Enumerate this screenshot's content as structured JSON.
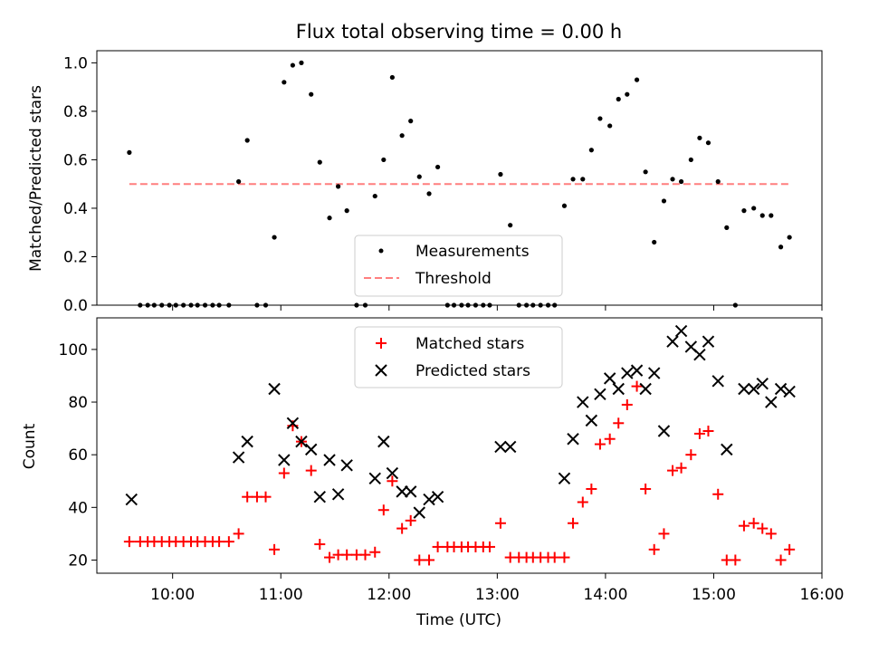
{
  "chart_data": [
    {
      "type": "scatter",
      "title": "Flux total observing time = 0.00 h",
      "xlabel": "",
      "ylabel": "Matched/Predicted stars",
      "xlim": [
        9.3,
        16.0
      ],
      "ylim": [
        0,
        1.05
      ],
      "yticks": [
        0.0,
        0.2,
        0.4,
        0.6,
        0.8,
        1.0
      ],
      "ytick_labels": [
        "0.0",
        "0.2",
        "0.4",
        "0.6",
        "0.8",
        "1.0"
      ],
      "legend_position": "lower-center",
      "series": [
        {
          "name": "Measurements",
          "color": "#000000",
          "marker": "dot",
          "points": [
            [
              9.6,
              0.63
            ],
            [
              9.7,
              0.0
            ],
            [
              9.77,
              0.0
            ],
            [
              9.83,
              0.0
            ],
            [
              9.9,
              0.0
            ],
            [
              9.97,
              0.0
            ],
            [
              10.03,
              0.0
            ],
            [
              10.1,
              0.0
            ],
            [
              10.17,
              0.0
            ],
            [
              10.23,
              0.0
            ],
            [
              10.3,
              0.0
            ],
            [
              10.37,
              0.0
            ],
            [
              10.43,
              0.0
            ],
            [
              10.52,
              0.0
            ],
            [
              10.61,
              0.51
            ],
            [
              10.69,
              0.68
            ],
            [
              10.78,
              0.0
            ],
            [
              10.86,
              0.0
            ],
            [
              10.94,
              0.28
            ],
            [
              11.03,
              0.92
            ],
            [
              11.11,
              0.99
            ],
            [
              11.19,
              1.0
            ],
            [
              11.28,
              0.87
            ],
            [
              11.36,
              0.59
            ],
            [
              11.45,
              0.36
            ],
            [
              11.53,
              0.49
            ],
            [
              11.61,
              0.39
            ],
            [
              11.7,
              0.0
            ],
            [
              11.78,
              0.0
            ],
            [
              11.87,
              0.45
            ],
            [
              11.95,
              0.6
            ],
            [
              12.03,
              0.94
            ],
            [
              12.12,
              0.7
            ],
            [
              12.2,
              0.76
            ],
            [
              12.28,
              0.53
            ],
            [
              12.37,
              0.46
            ],
            [
              12.45,
              0.57
            ],
            [
              12.54,
              0.0
            ],
            [
              12.6,
              0.0
            ],
            [
              12.67,
              0.0
            ],
            [
              12.73,
              0.0
            ],
            [
              12.8,
              0.0
            ],
            [
              12.87,
              0.0
            ],
            [
              12.93,
              0.0
            ],
            [
              13.03,
              0.54
            ],
            [
              13.12,
              0.33
            ],
            [
              13.2,
              0.0
            ],
            [
              13.27,
              0.0
            ],
            [
              13.33,
              0.0
            ],
            [
              13.4,
              0.0
            ],
            [
              13.47,
              0.0
            ],
            [
              13.53,
              0.0
            ],
            [
              13.62,
              0.41
            ],
            [
              13.7,
              0.52
            ],
            [
              13.79,
              0.52
            ],
            [
              13.87,
              0.64
            ],
            [
              13.95,
              0.77
            ],
            [
              14.04,
              0.74
            ],
            [
              14.12,
              0.85
            ],
            [
              14.2,
              0.87
            ],
            [
              14.29,
              0.93
            ],
            [
              14.37,
              0.55
            ],
            [
              14.45,
              0.26
            ],
            [
              14.54,
              0.43
            ],
            [
              14.62,
              0.52
            ],
            [
              14.7,
              0.51
            ],
            [
              14.79,
              0.6
            ],
            [
              14.87,
              0.69
            ],
            [
              14.95,
              0.67
            ],
            [
              15.04,
              0.51
            ],
            [
              15.12,
              0.32
            ],
            [
              15.2,
              0.0
            ],
            [
              15.28,
              0.39
            ],
            [
              15.37,
              0.4
            ],
            [
              15.45,
              0.37
            ],
            [
              15.53,
              0.37
            ],
            [
              15.62,
              0.24
            ],
            [
              15.7,
              0.28
            ]
          ]
        },
        {
          "name": "Threshold",
          "color": "#ff7f7f",
          "marker": "dashed-line",
          "points": [
            [
              9.6,
              0.5
            ],
            [
              15.7,
              0.5
            ]
          ]
        }
      ]
    },
    {
      "type": "scatter",
      "title": "",
      "xlabel": "Time (UTC)",
      "ylabel": "Count",
      "xlim": [
        9.3,
        16.0
      ],
      "ylim": [
        15,
        112
      ],
      "yticks": [
        20,
        40,
        60,
        80,
        100
      ],
      "ytick_labels": [
        "20",
        "40",
        "60",
        "80",
        "100"
      ],
      "xticks": [
        10,
        11,
        12,
        13,
        14,
        15,
        16
      ],
      "xtick_labels": [
        "10:00",
        "11:00",
        "12:00",
        "13:00",
        "14:00",
        "15:00",
        "16:00"
      ],
      "legend_position": "upper-center",
      "series": [
        {
          "name": "Matched stars",
          "color": "#ff0000",
          "marker": "plus",
          "points": [
            [
              9.6,
              27
            ],
            [
              9.7,
              27
            ],
            [
              9.77,
              27
            ],
            [
              9.83,
              27
            ],
            [
              9.9,
              27
            ],
            [
              9.97,
              27
            ],
            [
              10.03,
              27
            ],
            [
              10.1,
              27
            ],
            [
              10.17,
              27
            ],
            [
              10.23,
              27
            ],
            [
              10.3,
              27
            ],
            [
              10.37,
              27
            ],
            [
              10.43,
              27
            ],
            [
              10.52,
              27
            ],
            [
              10.61,
              30
            ],
            [
              10.69,
              44
            ],
            [
              10.78,
              44
            ],
            [
              10.86,
              44
            ],
            [
              10.94,
              24
            ],
            [
              11.03,
              53
            ],
            [
              11.11,
              71
            ],
            [
              11.19,
              65
            ],
            [
              11.28,
              54
            ],
            [
              11.36,
              26
            ],
            [
              11.45,
              21
            ],
            [
              11.53,
              22
            ],
            [
              11.61,
              22
            ],
            [
              11.7,
              22
            ],
            [
              11.78,
              22
            ],
            [
              11.87,
              23
            ],
            [
              11.95,
              39
            ],
            [
              12.03,
              50
            ],
            [
              12.12,
              32
            ],
            [
              12.2,
              35
            ],
            [
              12.28,
              20
            ],
            [
              12.37,
              20
            ],
            [
              12.45,
              25
            ],
            [
              12.54,
              25
            ],
            [
              12.6,
              25
            ],
            [
              12.67,
              25
            ],
            [
              12.73,
              25
            ],
            [
              12.8,
              25
            ],
            [
              12.87,
              25
            ],
            [
              12.93,
              25
            ],
            [
              13.03,
              34
            ],
            [
              13.12,
              21
            ],
            [
              13.2,
              21
            ],
            [
              13.27,
              21
            ],
            [
              13.33,
              21
            ],
            [
              13.4,
              21
            ],
            [
              13.47,
              21
            ],
            [
              13.53,
              21
            ],
            [
              13.62,
              21
            ],
            [
              13.7,
              34
            ],
            [
              13.79,
              42
            ],
            [
              13.87,
              47
            ],
            [
              13.95,
              64
            ],
            [
              14.04,
              66
            ],
            [
              14.12,
              72
            ],
            [
              14.2,
              79
            ],
            [
              14.29,
              86
            ],
            [
              14.37,
              47
            ],
            [
              14.45,
              24
            ],
            [
              14.54,
              30
            ],
            [
              14.62,
              54
            ],
            [
              14.7,
              55
            ],
            [
              14.79,
              60
            ],
            [
              14.87,
              68
            ],
            [
              14.95,
              69
            ],
            [
              15.04,
              45
            ],
            [
              15.12,
              20
            ],
            [
              15.2,
              20
            ],
            [
              15.28,
              33
            ],
            [
              15.37,
              34
            ],
            [
              15.45,
              32
            ],
            [
              15.53,
              30
            ],
            [
              15.62,
              20
            ],
            [
              15.7,
              24
            ]
          ]
        },
        {
          "name": "Predicted stars",
          "color": "#000000",
          "marker": "x",
          "points": [
            [
              9.62,
              43
            ],
            [
              10.61,
              59
            ],
            [
              10.69,
              65
            ],
            [
              10.94,
              85
            ],
            [
              11.03,
              58
            ],
            [
              11.11,
              72
            ],
            [
              11.19,
              65
            ],
            [
              11.28,
              62
            ],
            [
              11.36,
              44
            ],
            [
              11.45,
              58
            ],
            [
              11.53,
              45
            ],
            [
              11.61,
              56
            ],
            [
              11.87,
              51
            ],
            [
              11.95,
              65
            ],
            [
              12.03,
              53
            ],
            [
              12.12,
              46
            ],
            [
              12.2,
              46
            ],
            [
              12.28,
              38
            ],
            [
              12.37,
              43
            ],
            [
              12.45,
              44
            ],
            [
              13.03,
              63
            ],
            [
              13.12,
              63
            ],
            [
              13.62,
              51
            ],
            [
              13.7,
              66
            ],
            [
              13.79,
              80
            ],
            [
              13.87,
              73
            ],
            [
              13.95,
              83
            ],
            [
              14.04,
              89
            ],
            [
              14.12,
              85
            ],
            [
              14.2,
              91
            ],
            [
              14.29,
              92
            ],
            [
              14.37,
              85
            ],
            [
              14.45,
              91
            ],
            [
              14.54,
              69
            ],
            [
              14.62,
              103
            ],
            [
              14.7,
              107
            ],
            [
              14.79,
              101
            ],
            [
              14.87,
              98
            ],
            [
              14.95,
              103
            ],
            [
              15.04,
              88
            ],
            [
              15.12,
              62
            ],
            [
              15.28,
              85
            ],
            [
              15.37,
              85
            ],
            [
              15.45,
              87
            ],
            [
              15.53,
              80
            ],
            [
              15.62,
              85
            ],
            [
              15.7,
              84
            ]
          ]
        }
      ]
    }
  ]
}
